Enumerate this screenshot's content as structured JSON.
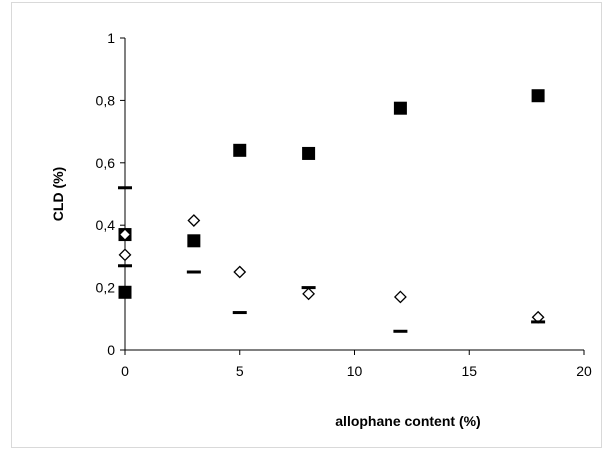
{
  "chart_data": {
    "type": "scatter",
    "title": "",
    "xlabel": "allophane content (%)",
    "ylabel": "CLD (%)",
    "xlim": [
      0,
      20
    ],
    "ylim": [
      0,
      1
    ],
    "x_ticks": [
      "0",
      "5",
      "10",
      "15",
      "20"
    ],
    "y_ticks": [
      "0",
      "0,2",
      "0,4",
      "0,6",
      "0,8",
      "1"
    ],
    "grid": false,
    "legend": "none",
    "series": [
      {
        "marker": "filled-square",
        "color": "#000000",
        "points": [
          [
            0,
            0.185
          ],
          [
            0,
            0.37
          ],
          [
            3,
            0.35
          ],
          [
            5,
            0.64
          ],
          [
            8,
            0.63
          ],
          [
            12,
            0.775
          ],
          [
            18,
            0.815
          ]
        ]
      },
      {
        "marker": "open-diamond",
        "color": "#000000",
        "points": [
          [
            0,
            0.37
          ],
          [
            0,
            0.305
          ],
          [
            3,
            0.415
          ],
          [
            5,
            0.25
          ],
          [
            8,
            0.18
          ],
          [
            12,
            0.17
          ],
          [
            18,
            0.105
          ]
        ]
      },
      {
        "marker": "dash",
        "color": "#000000",
        "points": [
          [
            0,
            0.52
          ],
          [
            0,
            0.27
          ],
          [
            3,
            0.25
          ],
          [
            5,
            0.12
          ],
          [
            8,
            0.2
          ],
          [
            12,
            0.06
          ],
          [
            18,
            0.09
          ]
        ]
      }
    ]
  }
}
